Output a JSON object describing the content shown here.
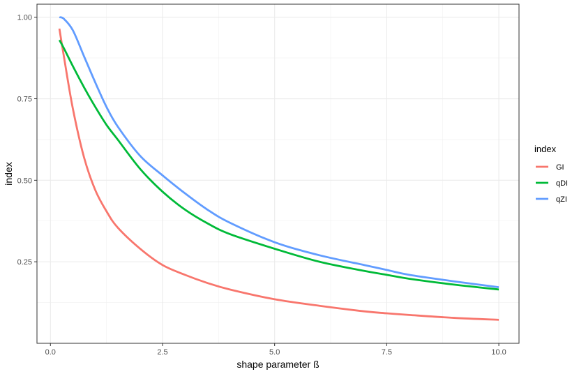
{
  "chart_data": {
    "type": "line",
    "xlabel": "shape parameter ß",
    "ylabel": "index",
    "xlim": [
      -0.3,
      10.45
    ],
    "ylim": [
      0.0,
      1.04
    ],
    "grid": true,
    "legend_position": "right",
    "legend_title": "index",
    "x_ticks": [
      {
        "value": 0,
        "label": "0.0"
      },
      {
        "value": 2.5,
        "label": "2.5"
      },
      {
        "value": 5,
        "label": "5.0"
      },
      {
        "value": 7.5,
        "label": "7.5"
      },
      {
        "value": 10,
        "label": "10.0"
      }
    ],
    "y_ticks": [
      {
        "value": 0.25,
        "label": "0.25"
      },
      {
        "value": 0.5,
        "label": "0.50"
      },
      {
        "value": 0.75,
        "label": "0.75"
      },
      {
        "value": 1.0,
        "label": "1.00"
      }
    ],
    "x": [
      0.2,
      0.3,
      0.5,
      0.75,
      1.0,
      1.25,
      1.5,
      2.0,
      2.5,
      3.0,
      3.5,
      4.0,
      5.0,
      6.0,
      7.0,
      7.5,
      8.0,
      9.0,
      10.0
    ],
    "series": [
      {
        "name": "GI",
        "color": "#f8766d",
        "values": [
          0.965,
          0.88,
          0.72,
          0.57,
          0.47,
          0.405,
          0.355,
          0.29,
          0.24,
          0.21,
          0.185,
          0.165,
          0.135,
          0.115,
          0.098,
          0.092,
          0.087,
          0.078,
          0.072
        ]
      },
      {
        "name": "qDI",
        "color": "#00ba38",
        "values": [
          0.93,
          0.905,
          0.85,
          0.785,
          0.725,
          0.67,
          0.625,
          0.535,
          0.465,
          0.41,
          0.368,
          0.335,
          0.29,
          0.25,
          0.222,
          0.21,
          0.198,
          0.18,
          0.165
        ]
      },
      {
        "name": "qZI",
        "color": "#619cff",
        "values": [
          1.0,
          0.995,
          0.96,
          0.88,
          0.8,
          0.725,
          0.665,
          0.575,
          0.515,
          0.46,
          0.41,
          0.37,
          0.31,
          0.27,
          0.24,
          0.225,
          0.21,
          0.19,
          0.172
        ]
      }
    ]
  }
}
